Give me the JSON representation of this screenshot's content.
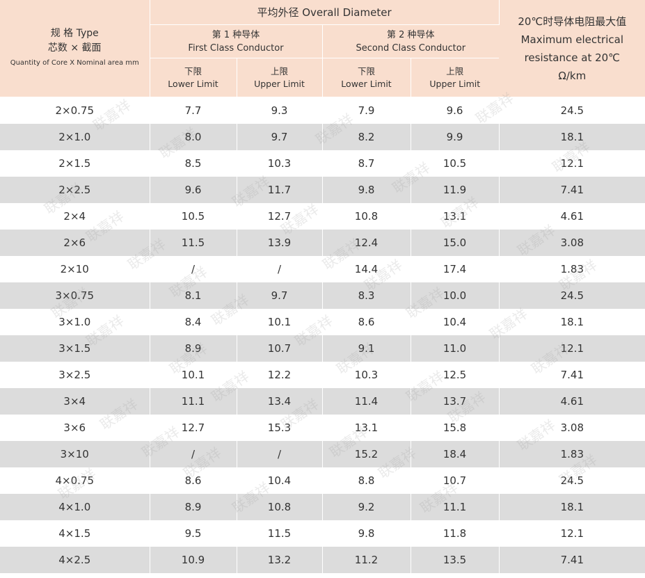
{
  "header": {
    "type_col": {
      "line1": "规 格 Type",
      "line2": "芯数 × 截面",
      "line3": "Quantity of Core X Nominal area mm"
    },
    "overall_diameter": "平均外径 Overall Diameter",
    "first_class": {
      "zh": "第 1 种导体",
      "en": "First Class Conductor"
    },
    "second_class": {
      "zh": "第 2 种导体",
      "en": "Second Class Conductor"
    },
    "lower": {
      "zh": "下限",
      "en": "Lower Limit"
    },
    "upper": {
      "zh": "上限",
      "en": "Upper Limit"
    },
    "resistance": {
      "line1": "20℃时导体电阻最大值",
      "line2": "Maximum electrical",
      "line3": "resistance at 20℃",
      "line4": "Ω/km"
    }
  },
  "rows": [
    {
      "type": "2×0.75",
      "c1_low": "7.7",
      "c1_up": "9.3",
      "c2_low": "7.9",
      "c2_up": "9.6",
      "res": "24.5"
    },
    {
      "type": "2×1.0",
      "c1_low": "8.0",
      "c1_up": "9.7",
      "c2_low": "8.2",
      "c2_up": "9.9",
      "res": "18.1"
    },
    {
      "type": "2×1.5",
      "c1_low": "8.5",
      "c1_up": "10.3",
      "c2_low": "8.7",
      "c2_up": "10.5",
      "res": "12.1"
    },
    {
      "type": "2×2.5",
      "c1_low": "9.6",
      "c1_up": "11.7",
      "c2_low": "9.8",
      "c2_up": "11.9",
      "res": "7.41"
    },
    {
      "type": "2×4",
      "c1_low": "10.5",
      "c1_up": "12.7",
      "c2_low": "10.8",
      "c2_up": "13.1",
      "res": "4.61"
    },
    {
      "type": "2×6",
      "c1_low": "11.5",
      "c1_up": "13.9",
      "c2_low": "12.4",
      "c2_up": "15.0",
      "res": "3.08"
    },
    {
      "type": "2×10",
      "c1_low": "/",
      "c1_up": "/",
      "c2_low": "14.4",
      "c2_up": "17.4",
      "res": "1.83"
    },
    {
      "type": "3×0.75",
      "c1_low": "8.1",
      "c1_up": "9.7",
      "c2_low": "8.3",
      "c2_up": "10.0",
      "res": "24.5"
    },
    {
      "type": "3×1.0",
      "c1_low": "8.4",
      "c1_up": "10.1",
      "c2_low": "8.6",
      "c2_up": "10.4",
      "res": "18.1"
    },
    {
      "type": "3×1.5",
      "c1_low": "8.9",
      "c1_up": "10.7",
      "c2_low": "9.1",
      "c2_up": "11.0",
      "res": "12.1"
    },
    {
      "type": "3×2.5",
      "c1_low": "10.1",
      "c1_up": "12.2",
      "c2_low": "10.3",
      "c2_up": "12.5",
      "res": "7.41"
    },
    {
      "type": "3×4",
      "c1_low": "11.1",
      "c1_up": "13.4",
      "c2_low": "11.4",
      "c2_up": "13.7",
      "res": "4.61"
    },
    {
      "type": "3×6",
      "c1_low": "12.7",
      "c1_up": "15.3",
      "c2_low": "13.1",
      "c2_up": "15.8",
      "res": "3.08"
    },
    {
      "type": "3×10",
      "c1_low": "/",
      "c1_up": "/",
      "c2_low": "15.2",
      "c2_up": "18.4",
      "res": "1.83"
    },
    {
      "type": "4×0.75",
      "c1_low": "8.6",
      "c1_up": "10.4",
      "c2_low": "8.8",
      "c2_up": "10.7",
      "res": "24.5"
    },
    {
      "type": "4×1.0",
      "c1_low": "8.9",
      "c1_up": "10.8",
      "c2_low": "9.2",
      "c2_up": "11.1",
      "res": "18.1"
    },
    {
      "type": "4×1.5",
      "c1_low": "9.5",
      "c1_up": "11.5",
      "c2_low": "9.8",
      "c2_up": "11.8",
      "res": "12.1"
    },
    {
      "type": "4×2.5",
      "c1_low": "10.9",
      "c1_up": "13.2",
      "c2_low": "11.2",
      "c2_up": "13.5",
      "res": "7.41"
    }
  ],
  "watermark": "联嘉祥"
}
